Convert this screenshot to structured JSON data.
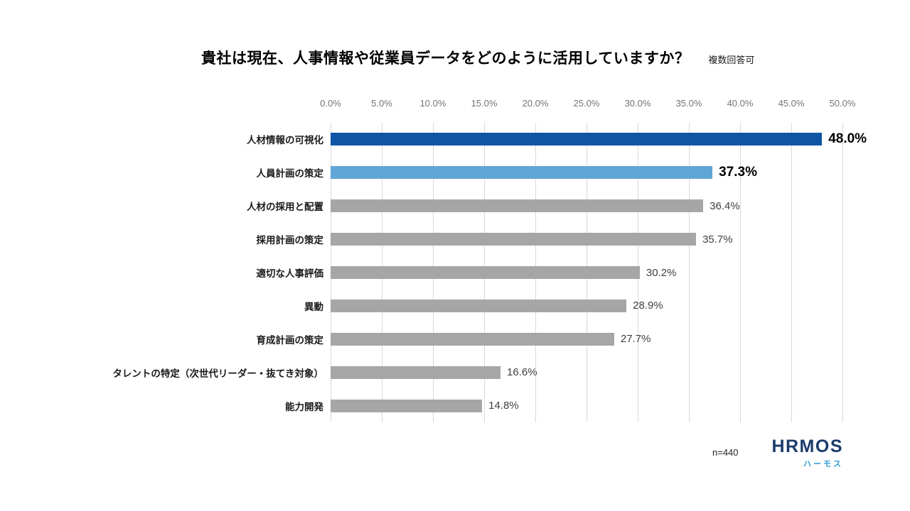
{
  "header": {
    "title": "貴社は現在、人事情報や従業員データをどのように活用していますか？",
    "note": "複数回答可"
  },
  "chart_data": {
    "type": "bar",
    "orientation": "horizontal",
    "title": "貴社は現在、人事情報や従業員データをどのように活用していますか？",
    "subtitle": "複数回答可",
    "categories": [
      "人材情報の可視化",
      "人員計画の策定",
      "人材の採用と配置",
      "採用計画の策定",
      "適切な人事評価",
      "異動",
      "育成計画の策定",
      "タレントの特定（次世代リーダー・抜てき対象）",
      "能力開発"
    ],
    "values": [
      48.0,
      37.3,
      36.4,
      35.7,
      30.2,
      28.9,
      27.7,
      16.6,
      14.8
    ],
    "value_labels": [
      "48.0%",
      "37.3%",
      "36.4%",
      "35.7%",
      "30.2%",
      "28.9%",
      "27.7%",
      "16.6%",
      "14.8%"
    ],
    "xlim": [
      0,
      50
    ],
    "tick_step": 5,
    "tick_labels": [
      "0.0%",
      "5.0%",
      "10.0%",
      "15.0%",
      "20.0%",
      "25.0%",
      "30.0%",
      "35.0%",
      "40.0%",
      "45.0%",
      "50.0%"
    ],
    "grid": true,
    "legend": "none",
    "emphasized_rows": [
      0,
      1
    ],
    "bar_colors": {
      "primary": "#0e56a4",
      "secondary": "#5fa6d5",
      "default": "#a6a6a6"
    }
  },
  "footer": {
    "sample_size": "n=440",
    "logo": {
      "text": "HRMOS",
      "subtext": "ハーモス"
    }
  },
  "colors": {
    "gridline": "#d9d9d9",
    "tick_text": "#737373",
    "value_text_default": "#404040",
    "value_text_emphasis": "#000000",
    "logo_navy": "#1b3c6b",
    "logo_blue": "#2e9ad7"
  }
}
